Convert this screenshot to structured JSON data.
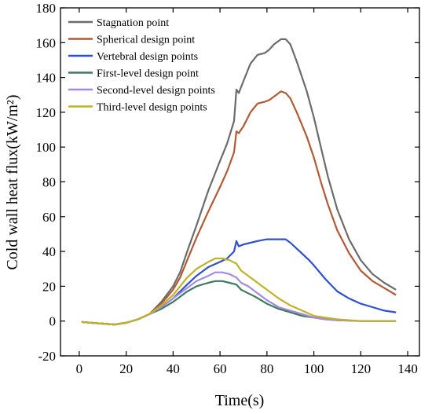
{
  "chart_data": {
    "type": "line",
    "xlabel": "Time(s)",
    "ylabel": "Cold wall heat flux(kW/m²)",
    "xlim": [
      -8,
      145
    ],
    "ylim": [
      -20,
      180
    ],
    "xticks": [
      "0",
      "20",
      "40",
      "60",
      "80",
      "100",
      "120",
      "140"
    ],
    "yticks": [
      "-20",
      "0",
      "20",
      "40",
      "60",
      "80",
      "100",
      "120",
      "140",
      "160",
      "180"
    ],
    "legend_position": "top-left",
    "series": [
      {
        "name": "Stagnation point",
        "color": "#6b6b6b",
        "points": [
          [
            1,
            -0.5
          ],
          [
            5,
            -1
          ],
          [
            10,
            -1.5
          ],
          [
            15,
            -2
          ],
          [
            20,
            -1
          ],
          [
            25,
            1
          ],
          [
            30,
            4
          ],
          [
            35,
            11
          ],
          [
            40,
            20
          ],
          [
            43,
            28
          ],
          [
            46,
            40
          ],
          [
            50,
            55
          ],
          [
            55,
            75
          ],
          [
            60,
            92
          ],
          [
            63,
            102
          ],
          [
            66,
            115
          ],
          [
            67,
            133
          ],
          [
            68,
            131
          ],
          [
            70,
            138
          ],
          [
            73,
            148
          ],
          [
            76,
            153
          ],
          [
            79,
            154
          ],
          [
            81,
            156
          ],
          [
            83,
            159
          ],
          [
            86,
            162
          ],
          [
            88,
            162
          ],
          [
            90,
            159
          ],
          [
            93,
            148
          ],
          [
            97,
            132
          ],
          [
            100,
            117
          ],
          [
            103,
            100
          ],
          [
            106,
            83
          ],
          [
            110,
            64
          ],
          [
            115,
            47
          ],
          [
            120,
            35
          ],
          [
            125,
            27
          ],
          [
            130,
            22
          ],
          [
            135,
            18
          ]
        ]
      },
      {
        "name": "Spherical design point",
        "color": "#b05a34",
        "points": [
          [
            1,
            -0.5
          ],
          [
            5,
            -1
          ],
          [
            10,
            -1.5
          ],
          [
            15,
            -2
          ],
          [
            20,
            -1
          ],
          [
            25,
            1
          ],
          [
            30,
            4
          ],
          [
            35,
            10
          ],
          [
            40,
            18
          ],
          [
            43,
            25
          ],
          [
            46,
            35
          ],
          [
            50,
            48
          ],
          [
            55,
            63
          ],
          [
            60,
            77
          ],
          [
            63,
            86
          ],
          [
            66,
            97
          ],
          [
            67,
            109
          ],
          [
            68,
            108
          ],
          [
            70,
            112
          ],
          [
            73,
            120
          ],
          [
            76,
            125
          ],
          [
            79,
            126
          ],
          [
            81,
            127
          ],
          [
            83,
            129
          ],
          [
            86,
            132
          ],
          [
            88,
            131
          ],
          [
            90,
            128
          ],
          [
            93,
            119
          ],
          [
            97,
            106
          ],
          [
            100,
            94
          ],
          [
            103,
            80
          ],
          [
            106,
            67
          ],
          [
            110,
            52
          ],
          [
            115,
            39
          ],
          [
            120,
            29
          ],
          [
            125,
            23
          ],
          [
            130,
            19
          ],
          [
            135,
            15
          ]
        ]
      },
      {
        "name": "Vertebral design points",
        "color": "#2e50d0",
        "points": [
          [
            1,
            -0.5
          ],
          [
            5,
            -1
          ],
          [
            10,
            -1.5
          ],
          [
            15,
            -2
          ],
          [
            20,
            -1
          ],
          [
            25,
            1
          ],
          [
            30,
            4
          ],
          [
            35,
            8
          ],
          [
            40,
            13
          ],
          [
            43,
            17
          ],
          [
            46,
            21
          ],
          [
            50,
            26
          ],
          [
            55,
            31
          ],
          [
            60,
            34
          ],
          [
            63,
            36
          ],
          [
            66,
            40
          ],
          [
            67,
            46
          ],
          [
            68,
            43
          ],
          [
            70,
            44
          ],
          [
            73,
            45
          ],
          [
            76,
            46
          ],
          [
            80,
            47
          ],
          [
            84,
            47
          ],
          [
            88,
            47
          ],
          [
            90,
            45
          ],
          [
            94,
            40
          ],
          [
            98,
            35
          ],
          [
            100,
            32
          ],
          [
            105,
            24
          ],
          [
            110,
            17
          ],
          [
            115,
            13
          ],
          [
            120,
            10
          ],
          [
            125,
            8
          ],
          [
            130,
            6
          ],
          [
            135,
            5
          ]
        ]
      },
      {
        "name": "First-level design point",
        "color": "#3e7a5c",
        "points": [
          [
            1,
            -0.5
          ],
          [
            5,
            -1
          ],
          [
            10,
            -1.5
          ],
          [
            15,
            -2
          ],
          [
            20,
            -1
          ],
          [
            25,
            1
          ],
          [
            30,
            4
          ],
          [
            35,
            7
          ],
          [
            40,
            11
          ],
          [
            43,
            14
          ],
          [
            46,
            17
          ],
          [
            50,
            20
          ],
          [
            55,
            22
          ],
          [
            58,
            23
          ],
          [
            61,
            23
          ],
          [
            64,
            22
          ],
          [
            67,
            21
          ],
          [
            69,
            18
          ],
          [
            72,
            16
          ],
          [
            75,
            14
          ],
          [
            80,
            10
          ],
          [
            85,
            7
          ],
          [
            90,
            5
          ],
          [
            95,
            3
          ],
          [
            100,
            2
          ],
          [
            105,
            1
          ],
          [
            110,
            0.5
          ],
          [
            120,
            0
          ],
          [
            135,
            0
          ]
        ]
      },
      {
        "name": "Second-level design points",
        "color": "#a68ae0",
        "points": [
          [
            1,
            -0.5
          ],
          [
            5,
            -1
          ],
          [
            10,
            -1.5
          ],
          [
            15,
            -2
          ],
          [
            20,
            -1
          ],
          [
            25,
            1
          ],
          [
            30,
            4
          ],
          [
            35,
            8
          ],
          [
            40,
            13
          ],
          [
            43,
            16
          ],
          [
            46,
            19
          ],
          [
            50,
            23
          ],
          [
            55,
            26
          ],
          [
            58,
            28
          ],
          [
            61,
            28
          ],
          [
            64,
            27
          ],
          [
            67,
            25
          ],
          [
            69,
            22
          ],
          [
            72,
            20
          ],
          [
            75,
            17
          ],
          [
            80,
            12
          ],
          [
            85,
            8
          ],
          [
            90,
            6
          ],
          [
            95,
            4
          ],
          [
            100,
            2
          ],
          [
            105,
            1
          ],
          [
            110,
            0.5
          ],
          [
            120,
            0
          ],
          [
            135,
            0
          ]
        ]
      },
      {
        "name": "Third-level design points",
        "color": "#bfb224",
        "points": [
          [
            1,
            -0.5
          ],
          [
            5,
            -1
          ],
          [
            10,
            -1.5
          ],
          [
            15,
            -2
          ],
          [
            20,
            -1
          ],
          [
            25,
            1
          ],
          [
            30,
            4
          ],
          [
            35,
            9
          ],
          [
            40,
            15
          ],
          [
            43,
            20
          ],
          [
            46,
            25
          ],
          [
            50,
            30
          ],
          [
            55,
            34
          ],
          [
            58,
            36
          ],
          [
            61,
            36
          ],
          [
            64,
            35
          ],
          [
            67,
            33
          ],
          [
            69,
            29
          ],
          [
            72,
            26
          ],
          [
            75,
            23
          ],
          [
            80,
            18
          ],
          [
            85,
            13
          ],
          [
            90,
            9
          ],
          [
            95,
            6
          ],
          [
            100,
            3
          ],
          [
            105,
            2
          ],
          [
            110,
            1
          ],
          [
            120,
            0
          ],
          [
            135,
            0
          ]
        ]
      }
    ]
  }
}
